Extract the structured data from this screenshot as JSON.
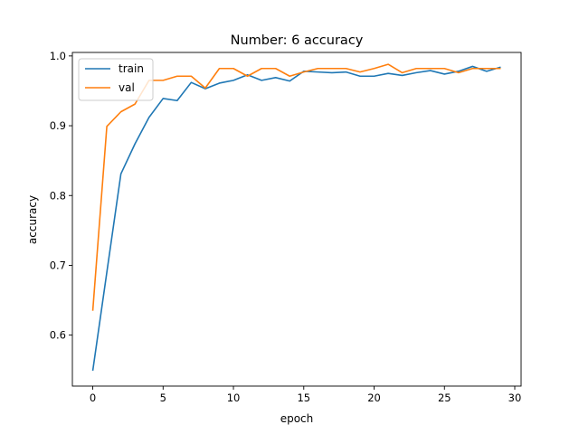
{
  "chart_data": {
    "type": "line",
    "title": "Number: 6 accuracy",
    "xlabel": "epoch",
    "ylabel": "accuracy",
    "xlim": [
      -1.45,
      30.45
    ],
    "ylim": [
      0.527,
      1.005
    ],
    "xticks": [
      0,
      5,
      10,
      15,
      20,
      25,
      30
    ],
    "yticks": [
      0.6,
      0.7,
      0.8,
      0.9,
      1.0
    ],
    "xtick_labels": [
      "0",
      "5",
      "10",
      "15",
      "20",
      "25",
      "30"
    ],
    "ytick_labels": [
      "0.6",
      "0.7",
      "0.8",
      "0.9",
      "1.0"
    ],
    "grid": false,
    "legend_position": "upper-left",
    "x": [
      0,
      1,
      2,
      3,
      4,
      5,
      6,
      7,
      8,
      9,
      10,
      11,
      12,
      13,
      14,
      15,
      16,
      17,
      18,
      19,
      20,
      21,
      22,
      23,
      24,
      25,
      26,
      27,
      28,
      29
    ],
    "series": [
      {
        "name": "train",
        "color": "#1f77b4",
        "values": [
          0.549,
          0.69,
          0.831,
          0.874,
          0.912,
          0.939,
          0.936,
          0.962,
          0.953,
          0.961,
          0.965,
          0.973,
          0.965,
          0.969,
          0.964,
          0.978,
          0.977,
          0.976,
          0.977,
          0.971,
          0.971,
          0.975,
          0.972,
          0.976,
          0.979,
          0.974,
          0.978,
          0.985,
          0.978,
          0.984
        ]
      },
      {
        "name": "val",
        "color": "#ff7f0e",
        "values": [
          0.635,
          0.899,
          0.92,
          0.931,
          0.965,
          0.965,
          0.971,
          0.971,
          0.954,
          0.982,
          0.982,
          0.971,
          0.982,
          0.982,
          0.971,
          0.977,
          0.982,
          0.982,
          0.982,
          0.977,
          0.982,
          0.988,
          0.976,
          0.982,
          0.982,
          0.982,
          0.976,
          0.982,
          0.982,
          0.982
        ]
      }
    ]
  }
}
